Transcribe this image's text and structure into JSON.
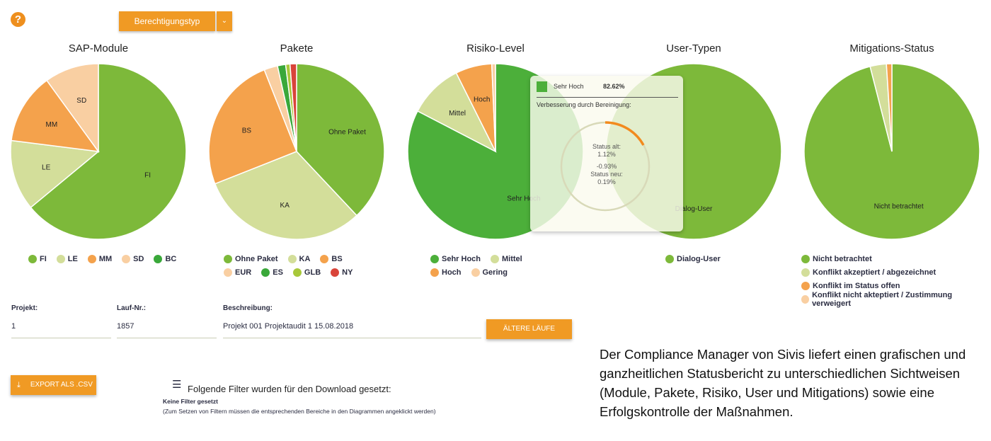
{
  "toolbar": {
    "help_icon": "question-circle-icon",
    "dropdown_label": "Berechtigungstyp",
    "dropdown_icon": "chevron-down-icon",
    "accent": "#f09a24"
  },
  "chart_data": [
    {
      "type": "pie",
      "title": "SAP-Module",
      "labels": [
        "FI",
        "LE",
        "MM",
        "SD",
        "BC"
      ],
      "values": [
        64,
        13,
        13,
        10,
        0
      ],
      "colors": [
        "#7db93a",
        "#d3de9a",
        "#f4a24c",
        "#f9cfa2",
        "#3aa83a"
      ],
      "slice_labels": [
        "FI",
        "LE",
        "MM",
        "SD",
        ""
      ]
    },
    {
      "type": "pie",
      "title": "Pakete",
      "labels": [
        "Ohne Paket",
        "KA",
        "BS",
        "EUR",
        "ES",
        "GLB",
        "NY"
      ],
      "values": [
        38,
        31,
        25,
        2.5,
        1.5,
        0.8,
        1.2
      ],
      "colors": [
        "#7db93a",
        "#d3de9a",
        "#f4a24c",
        "#f9cfa2",
        "#3aa83a",
        "#a8c83a",
        "#d9443a"
      ],
      "slice_labels": [
        "Ohne Paket",
        "KA",
        "BS",
        "",
        "",
        "",
        ""
      ]
    },
    {
      "type": "pie",
      "title": "Risiko-Level",
      "labels": [
        "Sehr Hoch",
        "Mittel",
        "Hoch",
        "Gering"
      ],
      "values": [
        82.62,
        10.0,
        6.7,
        0.68
      ],
      "colors": [
        "#4caf3a",
        "#d3de9a",
        "#f4a24c",
        "#f9cfa2"
      ],
      "slice_labels": [
        "Sehr Hoch",
        "Mittel",
        "Hoch",
        ""
      ]
    },
    {
      "type": "pie",
      "title": "User-Typen",
      "labels": [
        "Dialog-User"
      ],
      "values": [
        100
      ],
      "colors": [
        "#7db93a"
      ],
      "slice_labels": [
        "Dialog-User"
      ]
    },
    {
      "type": "pie",
      "title": "Mitigations-Status",
      "labels": [
        "Nicht betrachtet",
        "Konflikt akzeptiert / abgezeichnet",
        "Konflikt im Status offen",
        "Konflikt nicht akteptiert / Zustimmung verweigert"
      ],
      "values": [
        96,
        3,
        1,
        0
      ],
      "colors": [
        "#7db93a",
        "#d3de9a",
        "#f4a24c",
        "#f9cfa2"
      ],
      "slice_labels": [
        "Nicht betrachtet",
        "",
        "",
        ""
      ]
    }
  ],
  "tooltip": {
    "label": "Sehr Hoch",
    "value": "82.62%",
    "heading": "Verbesserung durch Bereinigung:",
    "old_label": "Status alt:",
    "old_value": "1.12%",
    "delta": "-0.93%",
    "new_label": "Status neu:",
    "new_value": "0.19%",
    "swatch": "#4caf3a"
  },
  "form": {
    "projekt_label": "Projekt:",
    "projekt_value": "1",
    "lauf_label": "Lauf-Nr.:",
    "lauf_value": "1857",
    "beschreibung_label": "Beschreibung:",
    "beschreibung_value": "Projekt 001 Projektaudit 1 15.08.2018",
    "older_runs_button": "ÄLTERE LÄUFE"
  },
  "export": {
    "button": "EXPORT ALS .CSV",
    "icon": "download-icon"
  },
  "filters": {
    "icon": "filter-icon",
    "heading": "Folgende Filter wurden für den Download gesetzt:",
    "status": "Keine Filter gesetzt",
    "hint": "(Zum Setzen von Filtern müssen die entsprechenden Bereiche in den Diagrammen angeklickt werden)"
  },
  "caption": "Der Compliance Manager von Sivis liefert einen grafischen und ganzheitlichen Statusbericht zu unterschiedlichen Sichtweisen (Module, Pakete, Risiko, User und Mitigations) sowie eine Erfolgskontrolle der Maßnahmen."
}
